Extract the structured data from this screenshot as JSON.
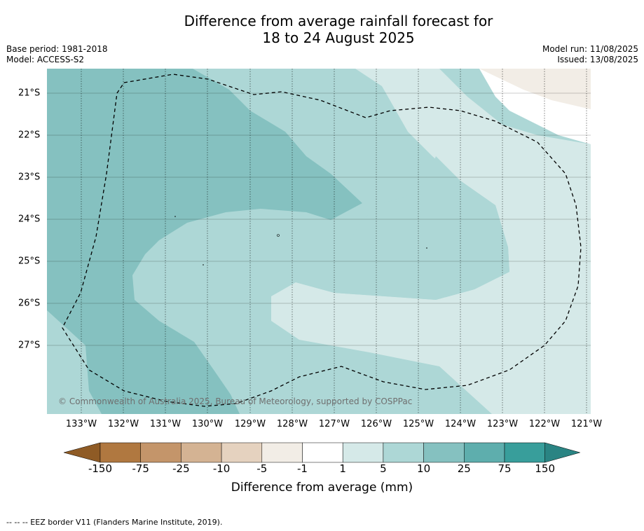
{
  "title_line1": "Difference from average rainfall forecast for",
  "title_line2": "18 to 24 August 2025",
  "base_period": "Base period: 1981-2018",
  "model": "Model: ACCESS-S2",
  "model_run": "Model run: 11/08/2025",
  "issued": "Issued: 13/08/2025",
  "copyright": "© Commonwealth of Australia 2025, Bureau of Meteorology, supported by COSPPac",
  "lat_labels": [
    "21°S",
    "22°S",
    "23°S",
    "24°S",
    "25°S",
    "26°S",
    "27°S"
  ],
  "lon_labels": [
    "133°W",
    "132°W",
    "131°W",
    "130°W",
    "129°W",
    "128°W",
    "127°W",
    "126°W",
    "125°W",
    "124°W",
    "123°W",
    "122°W",
    "121°W"
  ],
  "colorbar": {
    "ticks": [
      "-150",
      "-75",
      "-25",
      "-10",
      "-5",
      "-1",
      "1",
      "5",
      "10",
      "25",
      "75",
      "150"
    ],
    "colors": [
      "#8f5b25",
      "#b07840",
      "#c4956a",
      "#d4b393",
      "#e5d2bf",
      "#f2ede6",
      "#ffffff",
      "#d5e9e8",
      "#add7d6",
      "#85c1c0",
      "#5eaead",
      "#389e9b",
      "#2a8483"
    ],
    "title": "Difference from average (mm)"
  },
  "map_colors": {
    "band_25_75": "#85c1c0",
    "band_10_25": "#add7d6",
    "band_5_10": "#d5e9e8",
    "band_1_5": "#ffffff",
    "band_neg": "#f2ede6"
  },
  "footnote": "--  --  -- EEZ border V11 (Flanders Marine Institute, 2019)."
}
